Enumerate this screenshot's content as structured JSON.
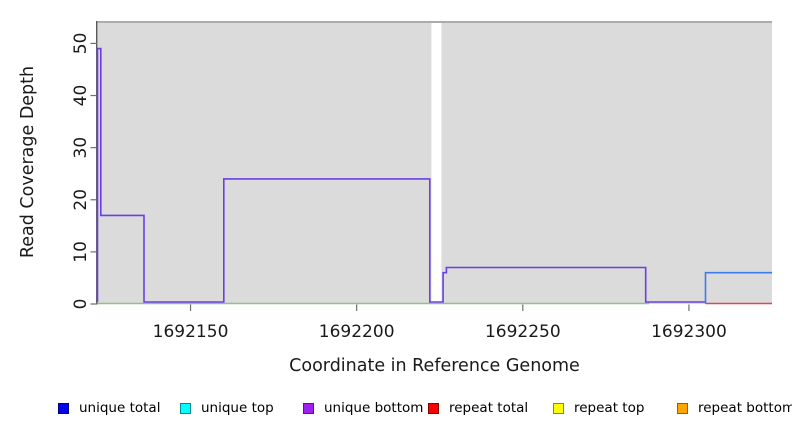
{
  "figure": {
    "x_axis_title": "Coordinate in Reference Genome",
    "y_axis_title": "Read Coverage Depth"
  },
  "legend": {
    "items": [
      {
        "label": "unique total",
        "fill": "#0202F0",
        "border": "#000080",
        "x": 58
      },
      {
        "label": "unique top",
        "fill": "#00FFFF",
        "border": "#008B8B",
        "x": 180
      },
      {
        "label": "unique bottom",
        "fill": "#A020F0",
        "border": "#5E0D94",
        "x": 303
      },
      {
        "label": "repeat total",
        "fill": "#FF0000",
        "border": "#8B0000",
        "x": 428
      },
      {
        "label": "repeat top",
        "fill": "#FFFF00",
        "border": "#8B8B00",
        "x": 553
      },
      {
        "label": "repeat bottom",
        "fill": "#FFA500",
        "border": "#995E00",
        "x": 677
      }
    ]
  },
  "chart_data": {
    "type": "line",
    "step": true,
    "title": "",
    "xlabel": "Coordinate in Reference Genome",
    "ylabel": "Read Coverage Depth",
    "xlim": [
      1692122,
      1692325
    ],
    "ylim": [
      0,
      54.3
    ],
    "xticks": [
      1692150,
      1692200,
      1692250,
      1692300
    ],
    "yticks": [
      0,
      10,
      20,
      30,
      40,
      50
    ],
    "grid": false,
    "legend_position": "bottom",
    "panel_bg": "#DBDBDB",
    "no_data_gap_x": [
      1692222.5,
      1692225.5
    ],
    "series": [
      {
        "name": "baseline-green",
        "color": "#83C883",
        "width": 1.4,
        "zero_lift": 0.5,
        "points": [
          [
            1692122,
            0
          ],
          [
            1692288,
            0
          ]
        ]
      },
      {
        "name": "repeat-total-baseline",
        "color": "#E04455",
        "width": 1.4,
        "zero_lift": 0.5,
        "points": [
          [
            1692305,
            0
          ],
          [
            1692325,
            0
          ]
        ]
      },
      {
        "name": "unique-bottom-coverage",
        "color": "#6C3EE6",
        "width": 1.6,
        "zero_lift": 2,
        "points": [
          [
            1692122,
            0
          ],
          [
            1692122,
            49
          ],
          [
            1692123,
            49
          ],
          [
            1692123,
            17
          ],
          [
            1692136,
            17
          ],
          [
            1692136,
            0
          ],
          [
            1692160,
            0
          ],
          [
            1692160,
            24
          ],
          [
            1692222,
            24
          ],
          [
            1692222,
            0
          ],
          [
            1692226,
            0
          ],
          [
            1692226,
            6
          ],
          [
            1692227,
            6
          ],
          [
            1692227,
            7
          ],
          [
            1692287,
            7
          ],
          [
            1692287,
            0
          ],
          [
            1692305,
            0
          ]
        ]
      },
      {
        "name": "unique-total-coverage",
        "color": "#3D7BEB",
        "width": 1.6,
        "zero_lift": 0.5,
        "points": [
          [
            1692305,
            0
          ],
          [
            1692305,
            6
          ],
          [
            1692325,
            6
          ]
        ]
      }
    ]
  }
}
